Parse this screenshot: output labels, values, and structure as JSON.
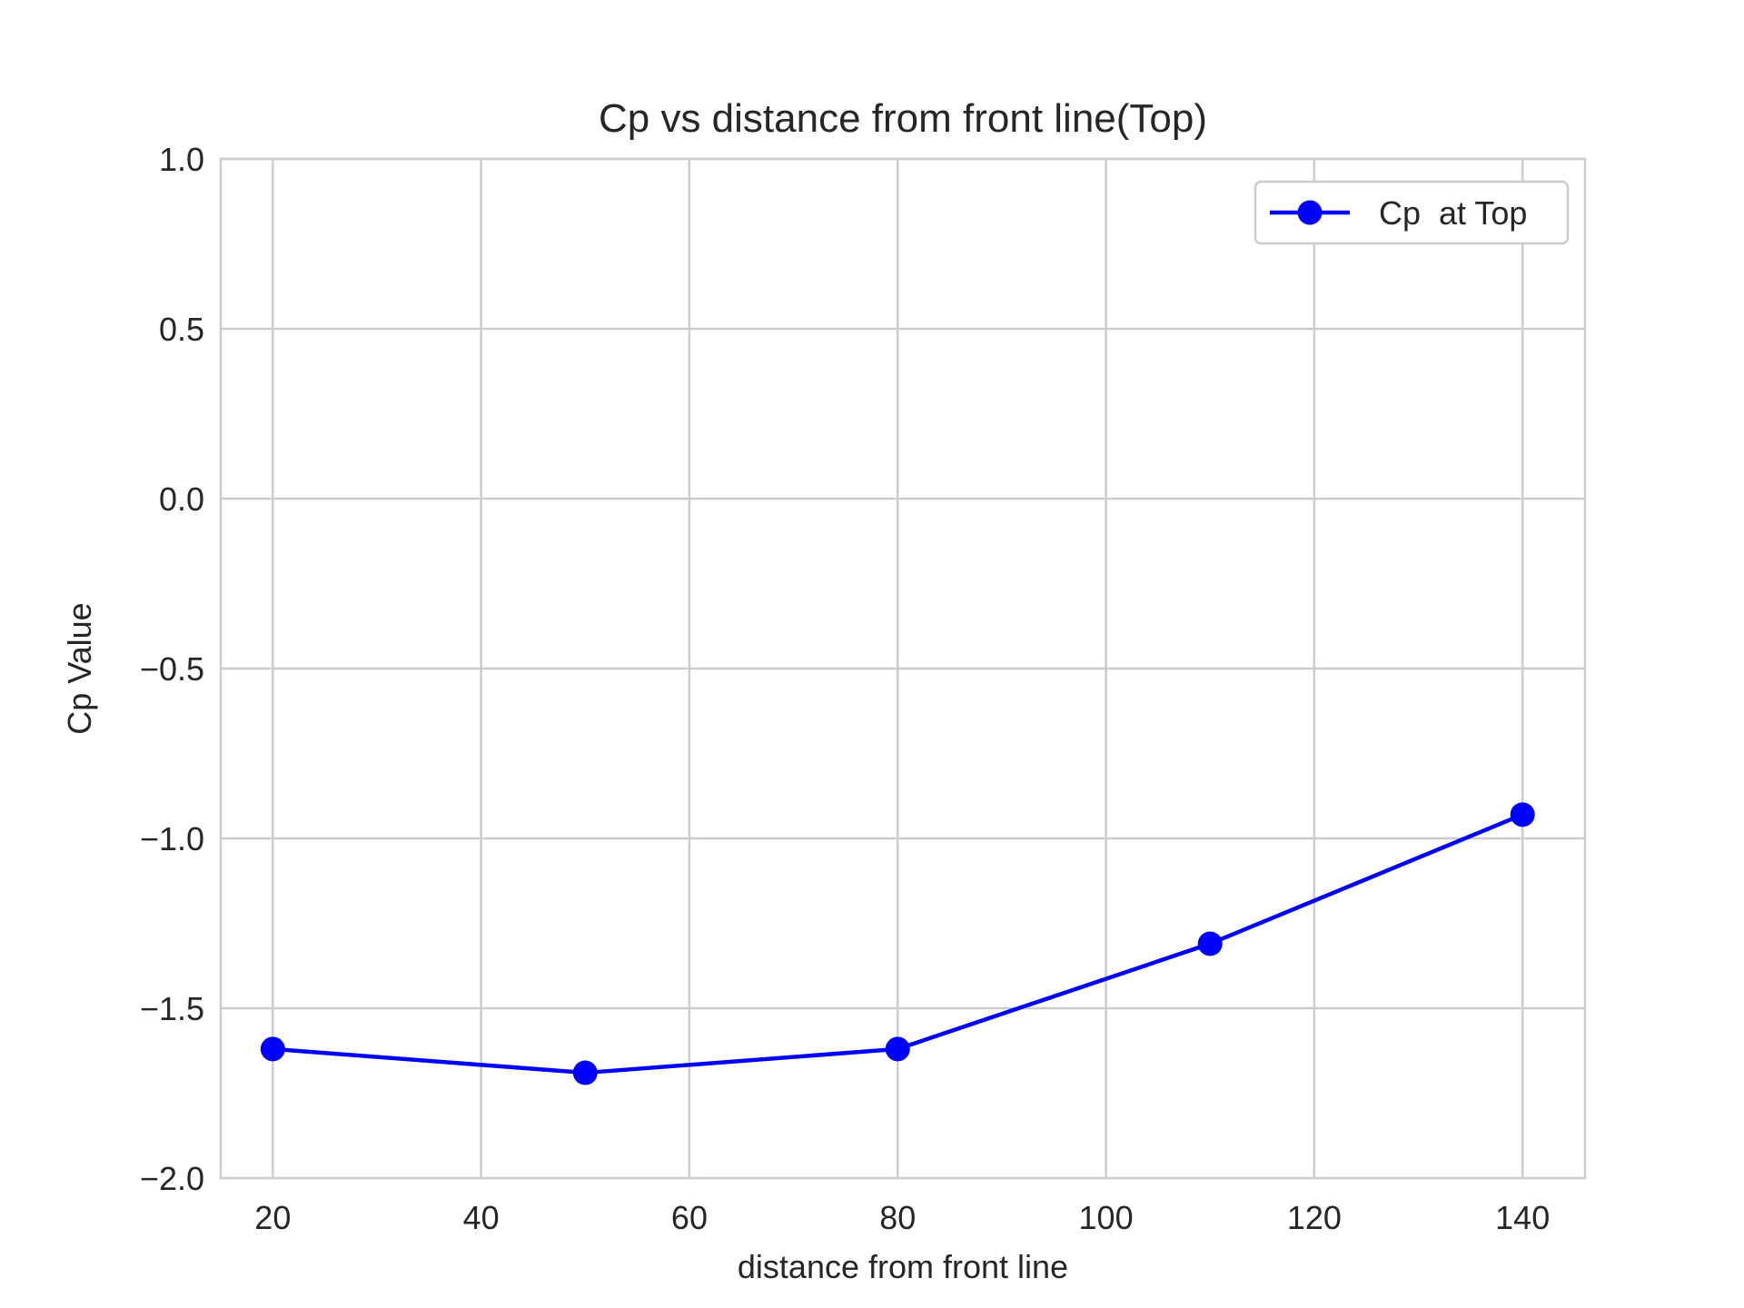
{
  "chart_data": {
    "type": "line",
    "title": "Cp vs distance from front line(Top)",
    "xlabel": "distance from front line",
    "ylabel": "Cp Value",
    "xlim": [
      15,
      146
    ],
    "ylim": [
      -2.0,
      1.0
    ],
    "x_ticks": [
      20,
      40,
      60,
      80,
      100,
      120,
      140
    ],
    "x_tick_labels": [
      "20",
      "40",
      "60",
      "80",
      "100",
      "120",
      "140"
    ],
    "y_ticks": [
      -2.0,
      -1.5,
      -1.0,
      -0.5,
      0.0,
      0.5,
      1.0
    ],
    "y_tick_labels": [
      "−2.0",
      "−1.5",
      "−1.0",
      "−0.5",
      "0.0",
      "0.5",
      "1.0"
    ],
    "grid": true,
    "legend_position": "top-right",
    "series": [
      {
        "name": "Cp  at Top",
        "color": "#0000ff",
        "marker": "circle",
        "x": [
          20,
          50,
          80,
          110,
          140
        ],
        "y": [
          -1.62,
          -1.69,
          -1.62,
          -1.31,
          -0.93
        ]
      }
    ]
  }
}
